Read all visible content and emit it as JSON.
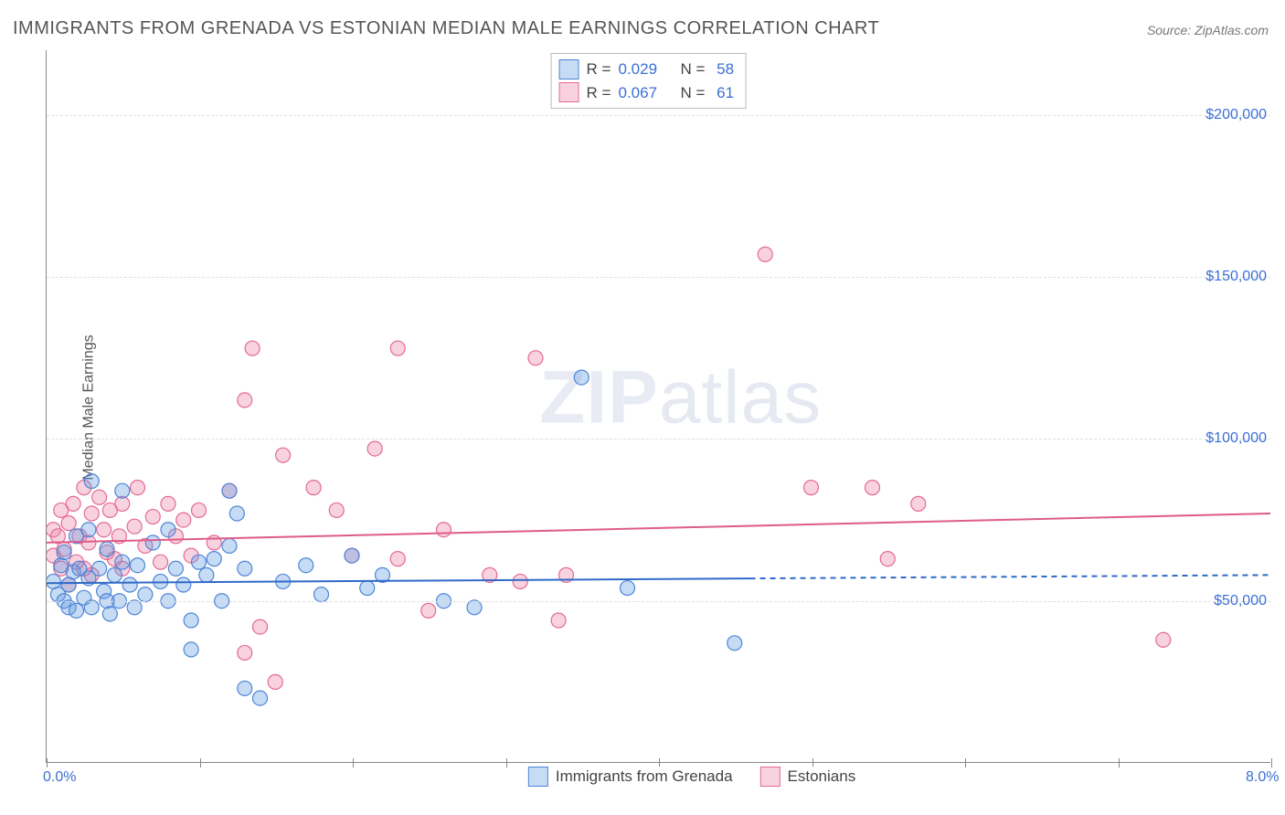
{
  "title": "IMMIGRANTS FROM GRENADA VS ESTONIAN MEDIAN MALE EARNINGS CORRELATION CHART",
  "source": "Source: ZipAtlas.com",
  "ylabel": "Median Male Earnings",
  "watermark_a": "ZIP",
  "watermark_b": "atlas",
  "chart": {
    "type": "scatter",
    "xlim": [
      0,
      8
    ],
    "ylim": [
      0,
      220000
    ],
    "background_color": "#ffffff",
    "grid_color": "#dddddd",
    "axis_color": "#888888",
    "y_gridlines": [
      50000,
      100000,
      150000,
      200000
    ],
    "y_tick_labels": {
      "50000": "$50,000",
      "100000": "$100,000",
      "150000": "$150,000",
      "200000": "$200,000"
    },
    "x_ticks": [
      0,
      1,
      2,
      3,
      4,
      5,
      6,
      7,
      8
    ],
    "x_labels": {
      "0": "0.0%",
      "8": "8.0%"
    },
    "label_color": "#3b6fd6",
    "label_fontsize": 16,
    "marker_radius": 8,
    "marker_opacity": 0.45,
    "line_width": 2
  },
  "series": {
    "a": {
      "label": "Immigrants from Grenada",
      "color_fill": "rgba(93,151,224,0.35)",
      "color_stroke": "#4f86d8",
      "line_color": "#2f6ac8",
      "R": "0.029",
      "N": "58",
      "trend": {
        "y0": 55500,
        "y1": 58000,
        "solid_until_x": 4.6
      },
      "points": [
        [
          0.05,
          56000
        ],
        [
          0.08,
          52000
        ],
        [
          0.1,
          61000
        ],
        [
          0.12,
          50000
        ],
        [
          0.12,
          65000
        ],
        [
          0.15,
          55000
        ],
        [
          0.15,
          48000
        ],
        [
          0.18,
          59000
        ],
        [
          0.2,
          70000
        ],
        [
          0.2,
          47000
        ],
        [
          0.22,
          60000
        ],
        [
          0.25,
          51000
        ],
        [
          0.28,
          57000
        ],
        [
          0.28,
          72000
        ],
        [
          0.3,
          48000
        ],
        [
          0.3,
          87000
        ],
        [
          0.35,
          60000
        ],
        [
          0.38,
          53000
        ],
        [
          0.4,
          50000
        ],
        [
          0.4,
          66000
        ],
        [
          0.42,
          46000
        ],
        [
          0.45,
          58000
        ],
        [
          0.48,
          50000
        ],
        [
          0.5,
          62000
        ],
        [
          0.5,
          84000
        ],
        [
          0.55,
          55000
        ],
        [
          0.58,
          48000
        ],
        [
          0.6,
          61000
        ],
        [
          0.65,
          52000
        ],
        [
          0.7,
          68000
        ],
        [
          0.75,
          56000
        ],
        [
          0.8,
          50000
        ],
        [
          0.8,
          72000
        ],
        [
          0.85,
          60000
        ],
        [
          0.9,
          55000
        ],
        [
          0.95,
          44000
        ],
        [
          0.95,
          35000
        ],
        [
          1.0,
          62000
        ],
        [
          1.05,
          58000
        ],
        [
          1.1,
          63000
        ],
        [
          1.15,
          50000
        ],
        [
          1.2,
          67000
        ],
        [
          1.2,
          84000
        ],
        [
          1.25,
          77000
        ],
        [
          1.3,
          60000
        ],
        [
          1.3,
          23000
        ],
        [
          1.4,
          20000
        ],
        [
          1.55,
          56000
        ],
        [
          1.7,
          61000
        ],
        [
          1.8,
          52000
        ],
        [
          2.0,
          64000
        ],
        [
          2.1,
          54000
        ],
        [
          2.2,
          58000
        ],
        [
          2.6,
          50000
        ],
        [
          2.8,
          48000
        ],
        [
          3.5,
          119000
        ],
        [
          3.8,
          54000
        ],
        [
          4.5,
          37000
        ]
      ]
    },
    "b": {
      "label": "Estonians",
      "color_fill": "rgba(236,130,162,0.35)",
      "color_stroke": "#e46a94",
      "line_color": "#dd5c8a",
      "R": "0.067",
      "N": "61",
      "trend": {
        "y0": 68000,
        "y1": 77000,
        "solid_until_x": 8
      },
      "points": [
        [
          0.05,
          72000
        ],
        [
          0.05,
          64000
        ],
        [
          0.08,
          70000
        ],
        [
          0.1,
          60000
        ],
        [
          0.1,
          78000
        ],
        [
          0.12,
          66000
        ],
        [
          0.15,
          74000
        ],
        [
          0.15,
          55000
        ],
        [
          0.18,
          80000
        ],
        [
          0.2,
          62000
        ],
        [
          0.22,
          70000
        ],
        [
          0.25,
          85000
        ],
        [
          0.25,
          60000
        ],
        [
          0.28,
          68000
        ],
        [
          0.3,
          77000
        ],
        [
          0.3,
          58000
        ],
        [
          0.35,
          82000
        ],
        [
          0.38,
          72000
        ],
        [
          0.4,
          65000
        ],
        [
          0.42,
          78000
        ],
        [
          0.45,
          63000
        ],
        [
          0.48,
          70000
        ],
        [
          0.5,
          80000
        ],
        [
          0.5,
          60000
        ],
        [
          0.58,
          73000
        ],
        [
          0.6,
          85000
        ],
        [
          0.65,
          67000
        ],
        [
          0.7,
          76000
        ],
        [
          0.75,
          62000
        ],
        [
          0.8,
          80000
        ],
        [
          0.85,
          70000
        ],
        [
          0.9,
          75000
        ],
        [
          0.95,
          64000
        ],
        [
          1.0,
          78000
        ],
        [
          1.1,
          68000
        ],
        [
          1.2,
          84000
        ],
        [
          1.3,
          34000
        ],
        [
          1.3,
          112000
        ],
        [
          1.35,
          128000
        ],
        [
          1.4,
          42000
        ],
        [
          1.5,
          25000
        ],
        [
          1.55,
          95000
        ],
        [
          1.75,
          85000
        ],
        [
          1.9,
          78000
        ],
        [
          2.0,
          64000
        ],
        [
          2.15,
          97000
        ],
        [
          2.3,
          63000
        ],
        [
          2.3,
          128000
        ],
        [
          2.5,
          47000
        ],
        [
          2.6,
          72000
        ],
        [
          2.9,
          58000
        ],
        [
          3.1,
          56000
        ],
        [
          3.2,
          125000
        ],
        [
          3.35,
          44000
        ],
        [
          3.4,
          58000
        ],
        [
          4.7,
          157000
        ],
        [
          5.0,
          85000
        ],
        [
          5.4,
          85000
        ],
        [
          5.5,
          63000
        ],
        [
          5.7,
          80000
        ],
        [
          7.3,
          38000
        ]
      ]
    }
  },
  "stats_box": {
    "rows": [
      {
        "swatch": "a",
        "r_label": "R =",
        "r_val": "0.029",
        "n_label": "N =",
        "n_val": "58"
      },
      {
        "swatch": "b",
        "r_label": "R =",
        "r_val": "0.067",
        "n_label": "N =",
        "n_val": "61"
      }
    ]
  }
}
